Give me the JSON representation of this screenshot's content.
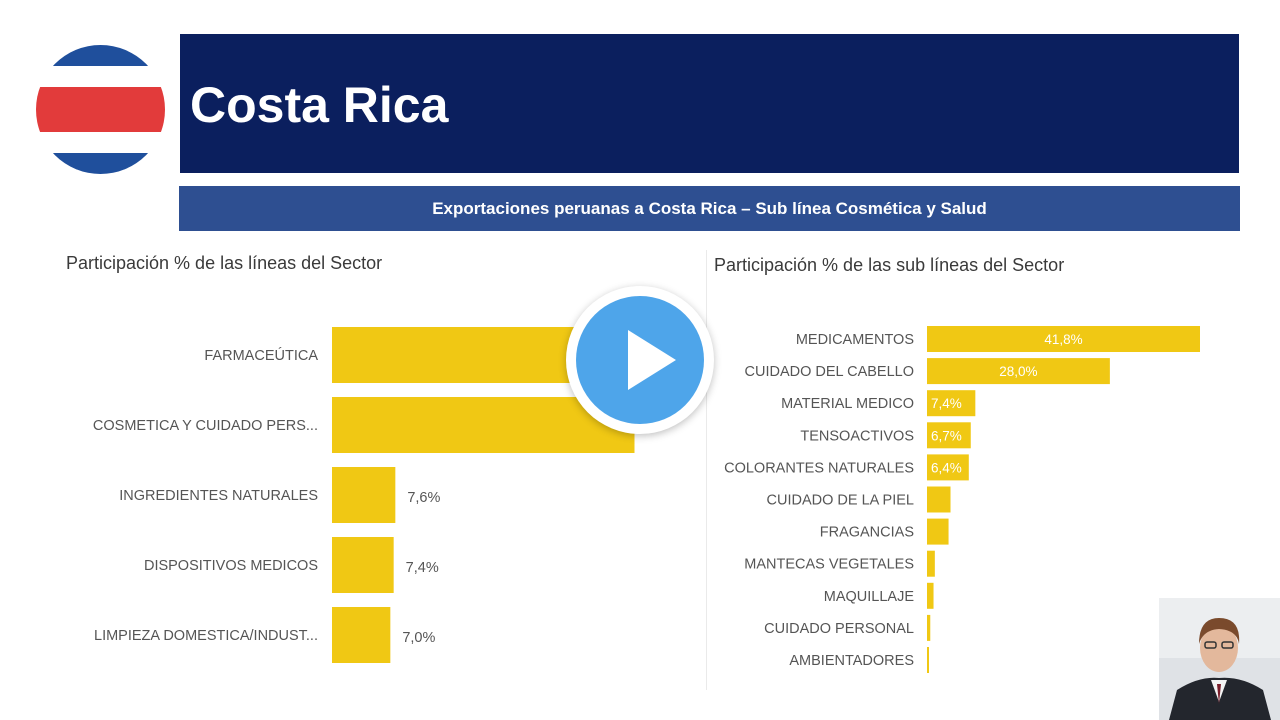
{
  "header": {
    "title": "Costa Rica",
    "subtitle": "Exportaciones peruanas a Costa Rica – Sub línea Cosmética y Salud"
  },
  "flag": {
    "icon": "costa-rica-flag-icon",
    "colors": {
      "blue": "#1f4f9c",
      "white": "#ffffff",
      "red": "#e23b3b"
    }
  },
  "colors": {
    "bar": "#f0c814",
    "banner": "#0b1f5e",
    "subtitle_bar": "#2e4f91",
    "play": "#4ea5ea"
  },
  "play_button": {
    "icon": "play-icon"
  },
  "webcam": {
    "icon": "presenter-video-icon"
  },
  "chart_data": [
    {
      "type": "bar",
      "orientation": "horizontal",
      "title": "Participación % de las líneas del Sector",
      "categories": [
        "FARMACEÚTICA",
        "COSMETICA Y CUIDADO PERS...",
        "INGREDIENTES NATURALES",
        "DISPOSITIVOS MEDICOS",
        "LIMPIEZA DOMESTICA/INDUST..."
      ],
      "values": [
        41.7,
        36.3,
        7.6,
        7.4,
        7.0
      ],
      "data_labels": [
        "",
        "36,3%",
        "7,6%",
        "7,4%",
        "7,0%"
      ],
      "xlim": [
        0,
        45
      ],
      "grid": false,
      "legend": "none"
    },
    {
      "type": "bar",
      "orientation": "horizontal",
      "title": "Participación % de las sub líneas del Sector",
      "categories": [
        "MEDICAMENTOS",
        "CUIDADO DEL CABELLO",
        "MATERIAL MEDICO",
        "TENSOACTIVOS",
        "COLORANTES NATURALES",
        "CUIDADO DE LA PIEL",
        "FRAGANCIAS",
        "MANTECAS VEGETALES",
        "MAQUILLAJE",
        "CUIDADO PERSONAL",
        "AMBIENTADORES"
      ],
      "values": [
        41.8,
        28.0,
        7.4,
        6.7,
        6.4,
        3.6,
        3.3,
        1.2,
        1.0,
        0.5,
        0.3
      ],
      "data_labels": [
        "41,8%",
        "28,0%",
        "7,4%",
        "6,7%",
        "6,4%",
        "",
        "",
        "",
        "",
        "",
        ""
      ],
      "xlim": [
        0,
        41.8
      ],
      "grid": false,
      "legend": "none"
    }
  ]
}
